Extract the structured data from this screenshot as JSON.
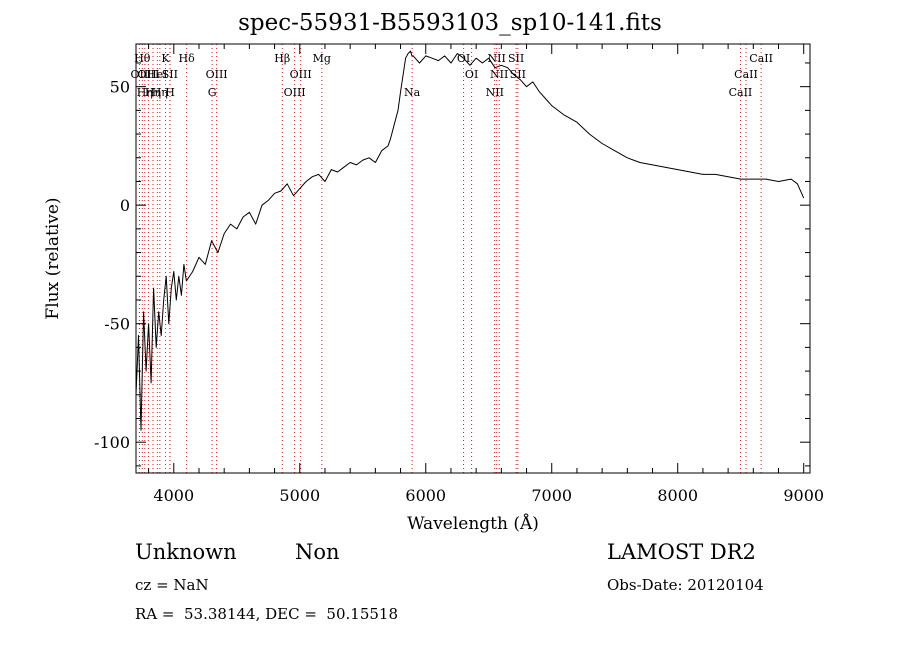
{
  "chart_data": {
    "type": "line",
    "title": "spec-55931-B5593103_sp10-141.fits",
    "xlabel": "Wavelength (Å)",
    "ylabel": "Flux (relative)",
    "xlim": [
      3700,
      9050
    ],
    "ylim": [
      -113,
      68
    ],
    "x_ticks": [
      4000,
      5000,
      6000,
      7000,
      8000,
      9000
    ],
    "y_ticks": [
      -100,
      -50,
      0,
      50
    ],
    "x_minor_step": 200,
    "y_minor_step": 10,
    "grid": false,
    "series": [
      {
        "color": "#000000",
        "x": [
          3700,
          3720,
          3740,
          3760,
          3780,
          3800,
          3820,
          3840,
          3860,
          3880,
          3900,
          3920,
          3940,
          3960,
          3980,
          4000,
          4020,
          4040,
          4060,
          4080,
          4100,
          4150,
          4200,
          4250,
          4300,
          4350,
          4400,
          4450,
          4500,
          4550,
          4600,
          4650,
          4700,
          4750,
          4800,
          4850,
          4900,
          4950,
          5000,
          5050,
          5100,
          5150,
          5200,
          5250,
          5300,
          5350,
          5400,
          5450,
          5500,
          5550,
          5600,
          5650,
          5700,
          5720,
          5740,
          5760,
          5780,
          5800,
          5820,
          5840,
          5860,
          5880,
          5890,
          5900,
          5950,
          6000,
          6050,
          6100,
          6150,
          6200,
          6250,
          6300,
          6350,
          6400,
          6450,
          6500,
          6550,
          6600,
          6650,
          6700,
          6750,
          6800,
          6850,
          6900,
          6950,
          7000,
          7100,
          7200,
          7300,
          7400,
          7500,
          7600,
          7700,
          7800,
          7900,
          8000,
          8100,
          8200,
          8300,
          8400,
          8500,
          8600,
          8700,
          8800,
          8900,
          8950,
          9000
        ],
        "y": [
          -80,
          -55,
          -95,
          -45,
          -70,
          -50,
          -75,
          -35,
          -60,
          -45,
          -55,
          -40,
          -30,
          -50,
          -35,
          -28,
          -40,
          -30,
          -38,
          -25,
          -32,
          -28,
          -22,
          -25,
          -15,
          -20,
          -12,
          -8,
          -10,
          -5,
          -3,
          -8,
          0,
          2,
          5,
          6,
          9,
          4,
          7,
          10,
          12,
          13,
          10,
          15,
          14,
          16,
          18,
          17,
          19,
          20,
          18,
          23,
          25,
          28,
          32,
          36,
          40,
          48,
          55,
          62,
          64,
          65,
          63,
          63,
          60,
          63,
          62,
          61,
          63,
          60,
          64,
          62,
          59,
          62,
          60,
          62,
          58,
          59,
          58,
          55,
          53,
          50,
          52,
          48,
          45,
          42,
          38,
          35,
          30,
          26,
          23,
          20,
          18,
          17,
          16,
          15,
          14,
          13,
          13,
          12,
          11,
          11,
          11,
          10,
          11,
          9,
          3
        ]
      }
    ],
    "line_markers": [
      {
        "x": 3727,
        "label": "OII",
        "row": 2
      },
      {
        "x": 3750,
        "label": "Hθ",
        "row": 1
      },
      {
        "x": 3770,
        "label": "Hη",
        "row": 3
      },
      {
        "x": 3798,
        "label": "OIII",
        "row": 2
      },
      {
        "x": 3835,
        "label": "Hη",
        "row": 3
      },
      {
        "x": 3869,
        "label": "HeI",
        "row": 2
      },
      {
        "x": 3889,
        "label": "Hη",
        "row": 3
      },
      {
        "x": 3934,
        "label": "K",
        "row": 1
      },
      {
        "x": 3969,
        "label": "SII",
        "row": 2
      },
      {
        "x": 3970,
        "label": "H",
        "row": 3
      },
      {
        "x": 4102,
        "label": "Hδ",
        "row": 1
      },
      {
        "x": 4304,
        "label": "G",
        "row": 3
      },
      {
        "x": 4340,
        "label": "OIII",
        "row": 2
      },
      {
        "x": 4861,
        "label": "Hβ",
        "row": 1
      },
      {
        "x": 4959,
        "label": "OIII",
        "row": 3
      },
      {
        "x": 5007,
        "label": "OIII",
        "row": 2
      },
      {
        "x": 5175,
        "label": "Mg",
        "row": 1
      },
      {
        "x": 5892,
        "label": "Na",
        "row": 3
      },
      {
        "x": 6300,
        "label": "OI",
        "row": 1
      },
      {
        "x": 6364,
        "label": "OI",
        "row": 2
      },
      {
        "x": 6548,
        "label": "NII",
        "row": 3
      },
      {
        "x": 6563,
        "label": "NII",
        "row": 1
      },
      {
        "x": 6583,
        "label": "NII",
        "row": 2
      },
      {
        "x": 6717,
        "label": "SII",
        "row": 1
      },
      {
        "x": 6731,
        "label": "SII",
        "row": 2
      },
      {
        "x": 8498,
        "label": "CaII",
        "row": 3
      },
      {
        "x": 8542,
        "label": "CaII",
        "row": 2
      },
      {
        "x": 8662,
        "label": "CaII",
        "row": 1
      }
    ]
  },
  "info": {
    "class_label": "Unknown",
    "subclass_label": "Non",
    "survey": "LAMOST DR2",
    "cz": "cz = NaN",
    "obs_date": "Obs-Date: 20120104",
    "coords": "RA =  53.38144, DEC =  50.15518"
  },
  "colors": {
    "marker_line": "#d02020",
    "spectrum": "#000000",
    "axes": "#000000"
  }
}
